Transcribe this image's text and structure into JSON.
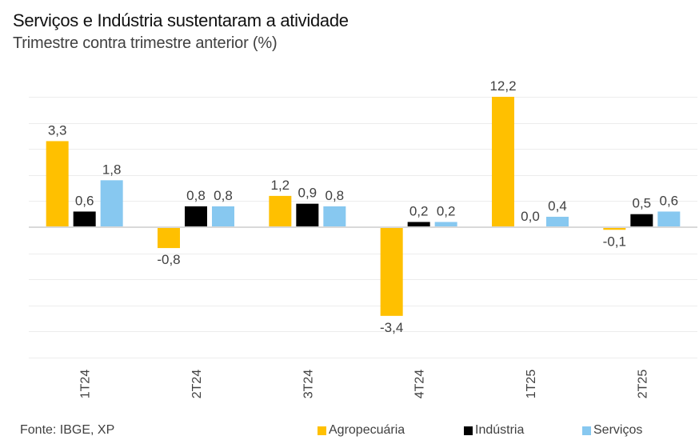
{
  "chart_data": {
    "type": "bar",
    "title": "Serviços e Indústria sustentaram a atividade",
    "subtitle": "Trimestre contra trimestre anterior (%)",
    "xlabel": "",
    "ylabel": "",
    "ylim": [
      -5,
      5
    ],
    "ytick_step": 1,
    "grid": true,
    "y_tick_labels_visible": false,
    "categories": [
      "1T24",
      "2T24",
      "3T24",
      "4T24",
      "1T25",
      "2T25"
    ],
    "series": [
      {
        "name": "Agropecuária",
        "color": "#FFC000",
        "values": [
          3.3,
          -0.8,
          1.2,
          -3.4,
          12.2,
          -0.1
        ],
        "labels": [
          "3,3",
          "-0,8",
          "1,2",
          "-3,4",
          "12,2",
          "-0,1"
        ]
      },
      {
        "name": "Indústria",
        "color": "#000000",
        "values": [
          0.6,
          0.8,
          0.9,
          0.2,
          0.0,
          0.5
        ],
        "labels": [
          "0,6",
          "0,8",
          "0,9",
          "0,2",
          "0,0",
          "0,5"
        ]
      },
      {
        "name": "Serviços",
        "color": "#87C8F0",
        "values": [
          1.8,
          0.8,
          0.8,
          0.2,
          0.4,
          0.6
        ],
        "labels": [
          "1,8",
          "0,8",
          "0,8",
          "0,2",
          "0,4",
          "0,6"
        ]
      }
    ],
    "legend_position": "bottom-right",
    "source": "Fonte: IBGE, XP",
    "x_tick_rotation": "vertical"
  }
}
